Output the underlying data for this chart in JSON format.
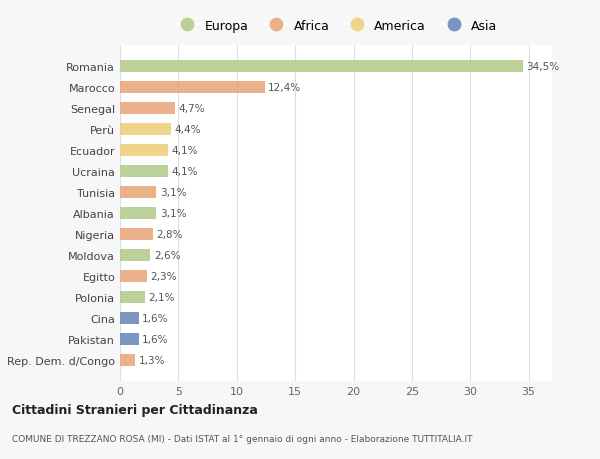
{
  "countries": [
    "Romania",
    "Marocco",
    "Senegal",
    "Perù",
    "Ecuador",
    "Ucraina",
    "Tunisia",
    "Albania",
    "Nigeria",
    "Moldova",
    "Egitto",
    "Polonia",
    "Cina",
    "Pakistan",
    "Rep. Dem. d/Congo"
  ],
  "values": [
    34.5,
    12.4,
    4.7,
    4.4,
    4.1,
    4.1,
    3.1,
    3.1,
    2.8,
    2.6,
    2.3,
    2.1,
    1.6,
    1.6,
    1.3
  ],
  "labels": [
    "34,5%",
    "12,4%",
    "4,7%",
    "4,4%",
    "4,1%",
    "4,1%",
    "3,1%",
    "3,1%",
    "2,8%",
    "2,6%",
    "2,3%",
    "2,1%",
    "1,6%",
    "1,6%",
    "1,3%"
  ],
  "continents": [
    "Europa",
    "Africa",
    "Africa",
    "America",
    "America",
    "Europa",
    "Africa",
    "Europa",
    "Africa",
    "Europa",
    "Africa",
    "Europa",
    "Asia",
    "Asia",
    "Africa"
  ],
  "colors": {
    "Europa": "#b5cc8e",
    "Africa": "#e8a97e",
    "America": "#f0d080",
    "Asia": "#6b8cba"
  },
  "legend_order": [
    "Europa",
    "Africa",
    "America",
    "Asia"
  ],
  "title": "Cittadini Stranieri per Cittadinanza",
  "subtitle": "COMUNE DI TREZZANO ROSA (MI) - Dati ISTAT al 1° gennaio di ogni anno - Elaborazione TUTTITALIA.IT",
  "bg_color": "#f7f7f7",
  "plot_bg_color": "#ffffff",
  "xlim": [
    0,
    37
  ],
  "xticks": [
    0,
    5,
    10,
    15,
    20,
    25,
    30,
    35
  ]
}
